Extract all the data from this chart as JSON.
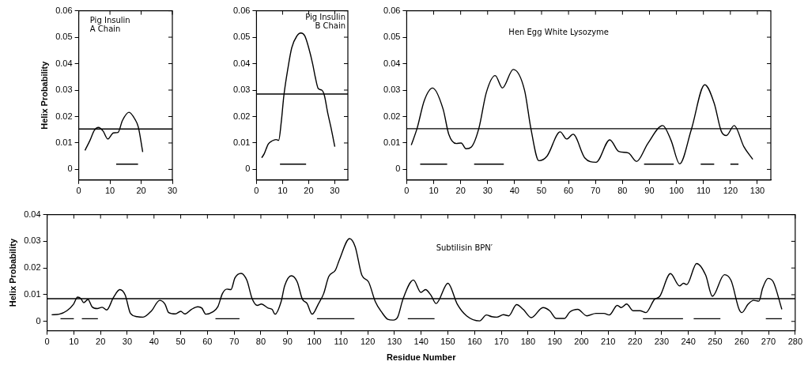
{
  "chart_data": [
    {
      "type": "line",
      "title": "Pig Insulin A Chain",
      "ylabel": "Helix Probability",
      "xlim": [
        0,
        30
      ],
      "xticks": [
        0,
        10,
        20,
        30
      ],
      "ylim": [
        -0.004,
        0.06
      ],
      "yticks": [
        0,
        0.01,
        0.02,
        0.03,
        0.04,
        0.05,
        0.06
      ],
      "grid": false,
      "legend": false,
      "marker": "none",
      "series": [
        {
          "type": "line",
          "color": "#000000",
          "x": [
            2,
            3.6,
            5,
            6.3,
            7.8,
            9.3,
            11.1,
            12.6,
            14,
            16.1,
            18,
            19.1,
            20.5
          ],
          "values": [
            0.0072,
            0.011,
            0.0148,
            0.0159,
            0.0145,
            0.0115,
            0.0138,
            0.014,
            0.0185,
            0.0216,
            0.019,
            0.016,
            0.0066
          ]
        },
        {
          "type": "line",
          "color": "#000000",
          "x": [
            12,
            19
          ],
          "values": [
            0.002,
            0.002
          ]
        }
      ],
      "ref_lines": [
        {
          "axis": "y",
          "value": 0.0153
        }
      ]
    },
    {
      "type": "line",
      "title": "Pig Insulin B Chain",
      "xlim": [
        0,
        35
      ],
      "xticks": [
        0,
        10,
        20,
        30
      ],
      "ylim": [
        -0.004,
        0.06
      ],
      "yticks": [
        0,
        0.01,
        0.02,
        0.03,
        0.04,
        0.05,
        0.06
      ],
      "grid": false,
      "legend": false,
      "marker": "none",
      "series": [
        {
          "type": "line",
          "color": "#000000",
          "x": [
            2,
            3,
            4.5,
            6,
            7.5,
            8.5,
            9.5,
            10.5,
            12,
            13.5,
            15.5,
            17,
            18.5,
            20,
            21.5,
            22.5,
            23.7,
            25,
            26,
            27.3,
            28.5,
            30
          ],
          "values": [
            0.0044,
            0.006,
            0.0096,
            0.0108,
            0.0113,
            0.011,
            0.018,
            0.028,
            0.038,
            0.046,
            0.0505,
            0.0516,
            0.0505,
            0.046,
            0.04,
            0.035,
            0.0305,
            0.03,
            0.028,
            0.0213,
            0.016,
            0.0086
          ]
        },
        {
          "type": "line",
          "color": "#000000",
          "x": [
            9,
            19
          ],
          "values": [
            0.002,
            0.002
          ]
        }
      ],
      "ref_lines": [
        {
          "axis": "y",
          "value": 0.0285
        }
      ]
    },
    {
      "type": "line",
      "title": "Hen Egg White Lysozyme",
      "xlim": [
        0,
        135
      ],
      "xticks": [
        0,
        10,
        20,
        30,
        40,
        50,
        60,
        70,
        80,
        90,
        100,
        110,
        120,
        130
      ],
      "ylim": [
        -0.004,
        0.06
      ],
      "yticks": [
        0,
        0.01,
        0.02,
        0.03,
        0.04,
        0.05,
        0.06
      ],
      "grid": false,
      "legend": false,
      "marker": "none",
      "series": [
        {
          "type": "line",
          "color": "#000000",
          "x": [
            1.7,
            3.9,
            6.5,
            9.6,
            13.5,
            15.6,
            18.4,
            20.2,
            22,
            24,
            26.8,
            29.5,
            32.8,
            35.5,
            39.5,
            43.7,
            46,
            49,
            52,
            56.9,
            59.3,
            61.7,
            66,
            70.2,
            75.3,
            78.6,
            82.2,
            85.2,
            89.4,
            94.9,
            98,
            101.2,
            105.5,
            110.5,
            114,
            116.6,
            118.5,
            121.4,
            125,
            128.3
          ],
          "values": [
            0.0092,
            0.0157,
            0.026,
            0.0308,
            0.0228,
            0.0133,
            0.0098,
            0.01,
            0.0078,
            0.0085,
            0.0157,
            0.029,
            0.0355,
            0.0308,
            0.0378,
            0.0299,
            0.0157,
            0.0033,
            0.005,
            0.0142,
            0.0115,
            0.0133,
            0.0044,
            0.0027,
            0.0112,
            0.0068,
            0.0062,
            0.003,
            0.0098,
            0.0166,
            0.011,
            0.0021,
            0.015,
            0.032,
            0.025,
            0.0145,
            0.0128,
            0.0166,
            0.0086,
            0.0038
          ]
        },
        {
          "type": "line",
          "color": "#000000",
          "x": [
            5,
            15,
            20,
            25,
            36,
            60,
            88,
            99,
            104,
            109,
            114,
            117,
            120,
            123
          ],
          "values": [
            0.002,
            0.002,
            null,
            0.002,
            0.002,
            null,
            0.002,
            0.002,
            null,
            0.002,
            0.002,
            null,
            0.002,
            0.002
          ]
        }
      ],
      "ref_lines": [
        {
          "axis": "y",
          "value": 0.0154
        }
      ]
    },
    {
      "type": "line",
      "title": "Subtilisin BPN′",
      "xlabel": "Residue Number",
      "ylabel": "Helix Probability",
      "xlim": [
        0,
        280
      ],
      "xticks": [
        0,
        10,
        20,
        30,
        40,
        50,
        60,
        70,
        80,
        90,
        100,
        110,
        120,
        130,
        140,
        150,
        160,
        170,
        180,
        190,
        200,
        210,
        220,
        230,
        240,
        250,
        260,
        270,
        280
      ],
      "ylim": [
        -0.0035,
        0.04
      ],
      "yticks": [
        0,
        0.01,
        0.02,
        0.03,
        0.04
      ],
      "grid": false,
      "legend": false,
      "marker": "none",
      "series": [
        {
          "type": "line",
          "color": "#000000",
          "x": [
            1.7,
            4.5,
            7.4,
            9.9,
            11.4,
            12.6,
            13.7,
            15.3,
            16.8,
            18.8,
            20.6,
            22.3,
            24.8,
            27.2,
            29.2,
            31.2,
            33.7,
            35.9,
            39.1,
            42.1,
            44.1,
            45.5,
            48,
            50,
            51.5,
            54,
            56.4,
            57.9,
            59.4,
            61.9,
            63.9,
            65.6,
            67.3,
            68.8,
            70.3,
            72.6,
            74.8,
            76.7,
            78.7,
            80.2,
            82.7,
            84.2,
            85.3,
            87.6,
            88.9,
            91.4,
            93.6,
            95.5,
            97.3,
            99.2,
            101.5,
            103.5,
            105.4,
            107.9,
            109.4,
            113.2,
            115.3,
            117.8,
            120.3,
            122.8,
            125.2,
            127.5,
            129.5,
            131.2,
            133.2,
            137.1,
            139.9,
            141.6,
            143.6,
            145.6,
            150,
            153.5,
            157,
            161.9,
            164.4,
            166.4,
            168.3,
            170.8,
            172.8,
            175.7,
            178.2,
            181.2,
            185.6,
            188.1,
            190.6,
            193.6,
            195.6,
            198.6,
            202,
            205.4,
            208.4,
            210.4,
            213.4,
            214.9,
            216.9,
            219.4,
            221.9,
            224.1,
            227.3,
            229.3,
            233.3,
            236.7,
            238.2,
            239.4,
            243.1,
            246.5,
            249,
            253.5,
            256,
            259,
            260,
            262.4,
            264.4,
            266.4,
            267.8,
            269.8,
            271.8,
            275
          ],
          "values": [
            0.0025,
            0.0027,
            0.004,
            0.0065,
            0.0091,
            0.0086,
            0.007,
            0.0082,
            0.0055,
            0.0048,
            0.0053,
            0.0043,
            0.0089,
            0.0119,
            0.0099,
            0.003,
            0.0018,
            0.0016,
            0.004,
            0.0079,
            0.0065,
            0.0033,
            0.0028,
            0.0038,
            0.0028,
            0.0045,
            0.0055,
            0.005,
            0.0027,
            0.0035,
            0.0055,
            0.0104,
            0.0121,
            0.0119,
            0.0163,
            0.018,
            0.0153,
            0.0086,
            0.006,
            0.0065,
            0.005,
            0.0045,
            0.0027,
            0.0075,
            0.0133,
            0.0171,
            0.0148,
            0.0084,
            0.0067,
            0.0027,
            0.0065,
            0.0104,
            0.0168,
            0.0192,
            0.0231,
            0.031,
            0.028,
            0.0173,
            0.0148,
            0.0075,
            0.0035,
            0.0008,
            0.0005,
            0.0016,
            0.0084,
            0.0155,
            0.0109,
            0.0119,
            0.0099,
            0.0067,
            0.0143,
            0.0065,
            0.0021,
            0.0002,
            0.0024,
            0.0018,
            0.0016,
            0.0025,
            0.0021,
            0.0063,
            0.0045,
            0.0014,
            0.0052,
            0.004,
            0.0011,
            0.0011,
            0.0035,
            0.0045,
            0.0021,
            0.003,
            0.003,
            0.0024,
            0.006,
            0.0052,
            0.0065,
            0.004,
            0.004,
            0.0033,
            0.0082,
            0.0094,
            0.0179,
            0.0133,
            0.0143,
            0.0138,
            0.0217,
            0.0173,
            0.0094,
            0.0175,
            0.0153,
            0.0045,
            0.0033,
            0.0065,
            0.0079,
            0.0076,
            0.0124,
            0.0161,
            0.0148,
            0.0045
          ]
        },
        {
          "type": "line",
          "color": "#000000",
          "x": [
            5,
            10,
            11,
            13,
            19,
            40,
            63,
            72,
            90,
            101,
            115,
            125,
            135,
            145,
            200,
            223,
            238,
            240,
            242,
            252,
            260,
            269,
            275
          ],
          "values": [
            0.001,
            0.001,
            null,
            0.001,
            0.001,
            null,
            0.001,
            0.001,
            null,
            0.001,
            0.001,
            null,
            0.001,
            0.001,
            null,
            0.001,
            0.001,
            null,
            0.001,
            0.001,
            null,
            0.001,
            0.001
          ]
        }
      ],
      "ref_lines": [
        {
          "axis": "y",
          "value": 0.0085
        }
      ]
    }
  ]
}
